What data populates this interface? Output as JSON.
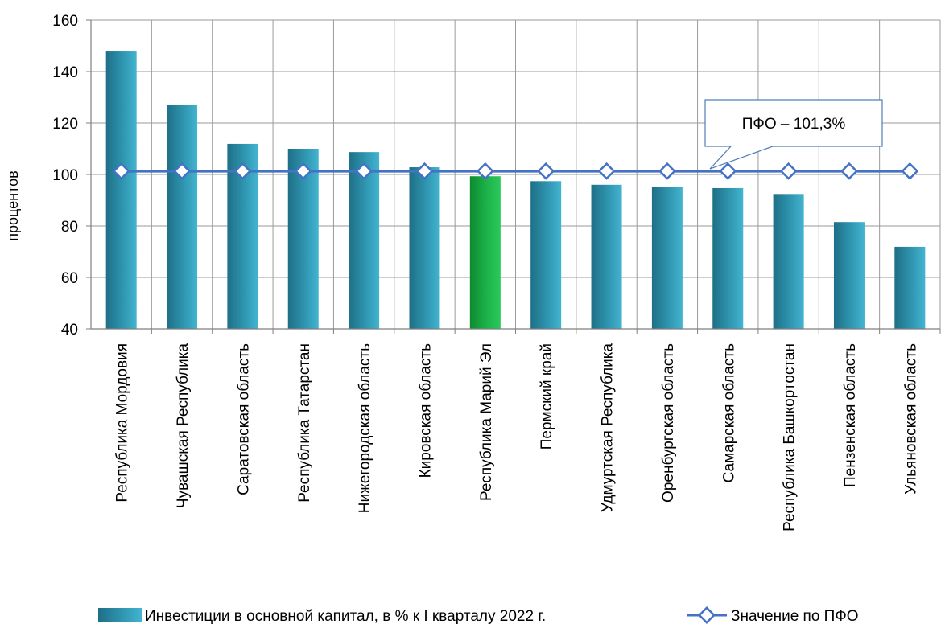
{
  "chart_data": {
    "type": "bar",
    "ylabel": "процентов",
    "ylim": [
      40,
      160
    ],
    "yticks": [
      40,
      60,
      80,
      100,
      120,
      140,
      160
    ],
    "grid": true,
    "legend_position": "bottom",
    "categories": [
      "Республика Мордовия",
      "Чувашская Республика",
      "Саратовская область",
      "Республика Татарстан",
      "Нижегородская область",
      "Кировская область",
      "Республика Марий Эл",
      "Пермский край",
      "Удмуртская Республика",
      "Оренбургская область",
      "Самарская область",
      "Республика Башкортостан",
      "Пензенская область",
      "Ульяновская область"
    ],
    "series": [
      {
        "name": "Инвестиции в основной капитал, в % к I кварталу 2022 г.",
        "kind": "bar",
        "color": "#2f8fa8",
        "highlight_index": 6,
        "highlight_color": "#1db34a",
        "values": [
          147.8,
          127.2,
          111.9,
          110.0,
          108.7,
          102.8,
          99.3,
          97.4,
          96.0,
          95.3,
          94.7,
          92.4,
          81.5,
          71.9
        ]
      },
      {
        "name": "Значение по ПФО",
        "kind": "line",
        "color": "#4472c4",
        "values": [
          101.3,
          101.3,
          101.3,
          101.3,
          101.3,
          101.3,
          101.3,
          101.3,
          101.3,
          101.3,
          101.3,
          101.3,
          101.3,
          101.3
        ]
      }
    ],
    "annotation": "ПФО – 101,3%"
  }
}
